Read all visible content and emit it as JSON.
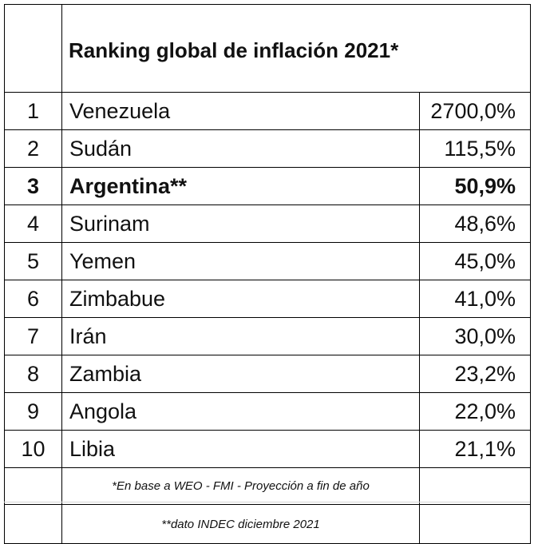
{
  "table": {
    "title": "Ranking global de inflación 2021*",
    "rows": [
      {
        "rank": "1",
        "country": "Venezuela",
        "value": "2700,0%"
      },
      {
        "rank": "2",
        "country": "Sudán",
        "value": "115,5%"
      },
      {
        "rank": "3",
        "country": "Argentina**",
        "value": "50,9%"
      },
      {
        "rank": "4",
        "country": "Surinam",
        "value": "48,6%"
      },
      {
        "rank": "5",
        "country": "Yemen",
        "value": "45,0%"
      },
      {
        "rank": "6",
        "country": "Zimbabue",
        "value": "41,0%"
      },
      {
        "rank": "7",
        "country": "Irán",
        "value": "30,0%"
      },
      {
        "rank": "8",
        "country": "Zambia",
        "value": "23,2%"
      },
      {
        "rank": "9",
        "country": "Angola",
        "value": "22,0%"
      },
      {
        "rank": "10",
        "country": "Libia",
        "value": "21,1%"
      }
    ],
    "highlighted_rank": "3",
    "notes": [
      "*En base a WEO - FMI - Proyección a fin de año",
      "**dato INDEC diciembre 2021"
    ]
  }
}
